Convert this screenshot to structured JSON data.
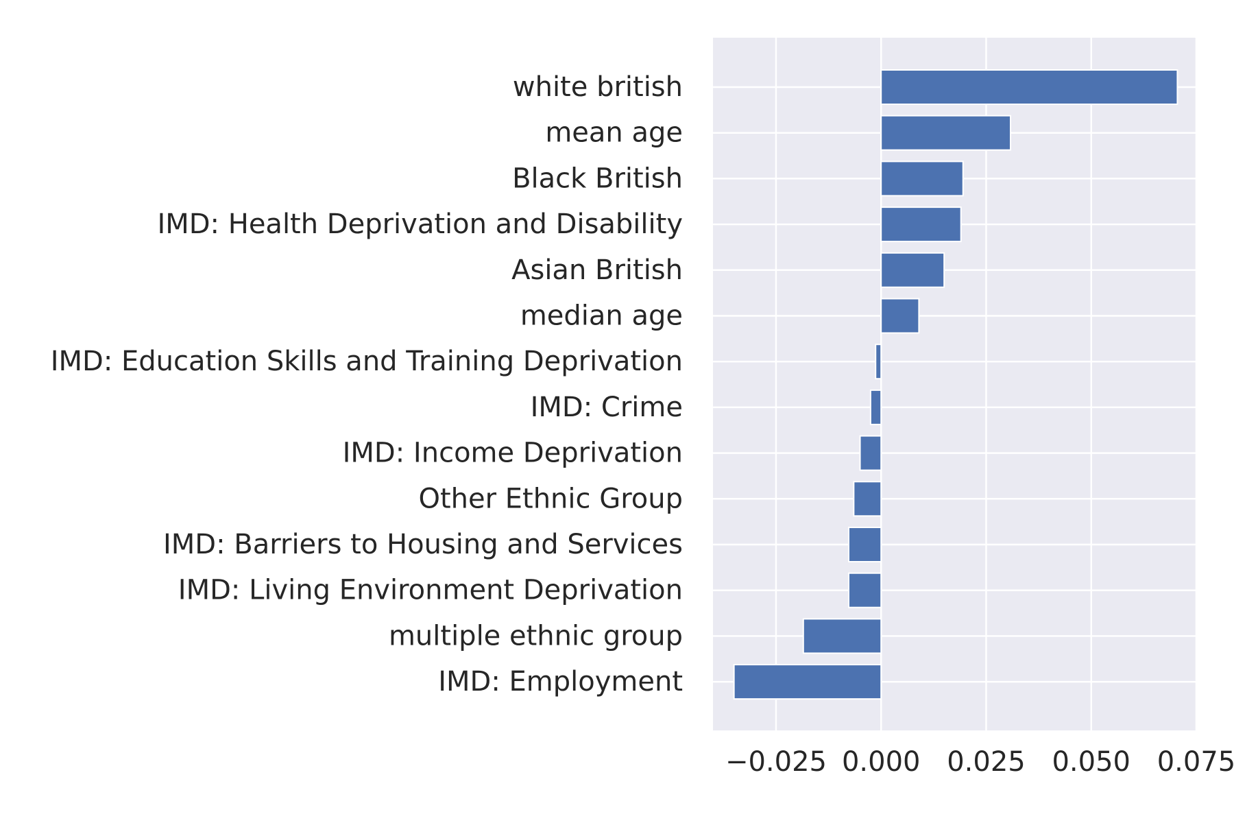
{
  "chart_data": {
    "type": "bar",
    "orientation": "horizontal",
    "title": "",
    "xlabel": "",
    "ylabel": "",
    "categories": [
      "white british",
      "mean age",
      "Black British",
      "IMD: Health Deprivation and Disability",
      "Asian British",
      "median age",
      "IMD: Education Skills and Training Deprivation",
      "IMD: Crime",
      "IMD: Income Deprivation",
      "Other Ethnic Group",
      "IMD: Barriers to Housing and Services",
      "IMD: Living Environment Deprivation",
      "multiple ethnic group",
      "IMD: Employment"
    ],
    "values": [
      0.0705,
      0.0308,
      0.0195,
      0.019,
      0.015,
      0.009,
      -0.0013,
      -0.0025,
      -0.005,
      -0.0065,
      -0.0077,
      -0.0077,
      -0.0185,
      -0.035
    ],
    "xlim": [
      -0.04,
      0.075
    ],
    "xticks": [
      -0.025,
      0.0,
      0.025,
      0.05,
      0.075
    ],
    "xtick_labels": [
      "−0.025",
      "0.000",
      "0.025",
      "0.050",
      "0.075"
    ],
    "grid": true,
    "legend": false,
    "colors": {
      "bar": "#4c72b0",
      "plot_background": "#eaeaf2",
      "grid": "#ffffff",
      "text": "#262626"
    }
  }
}
